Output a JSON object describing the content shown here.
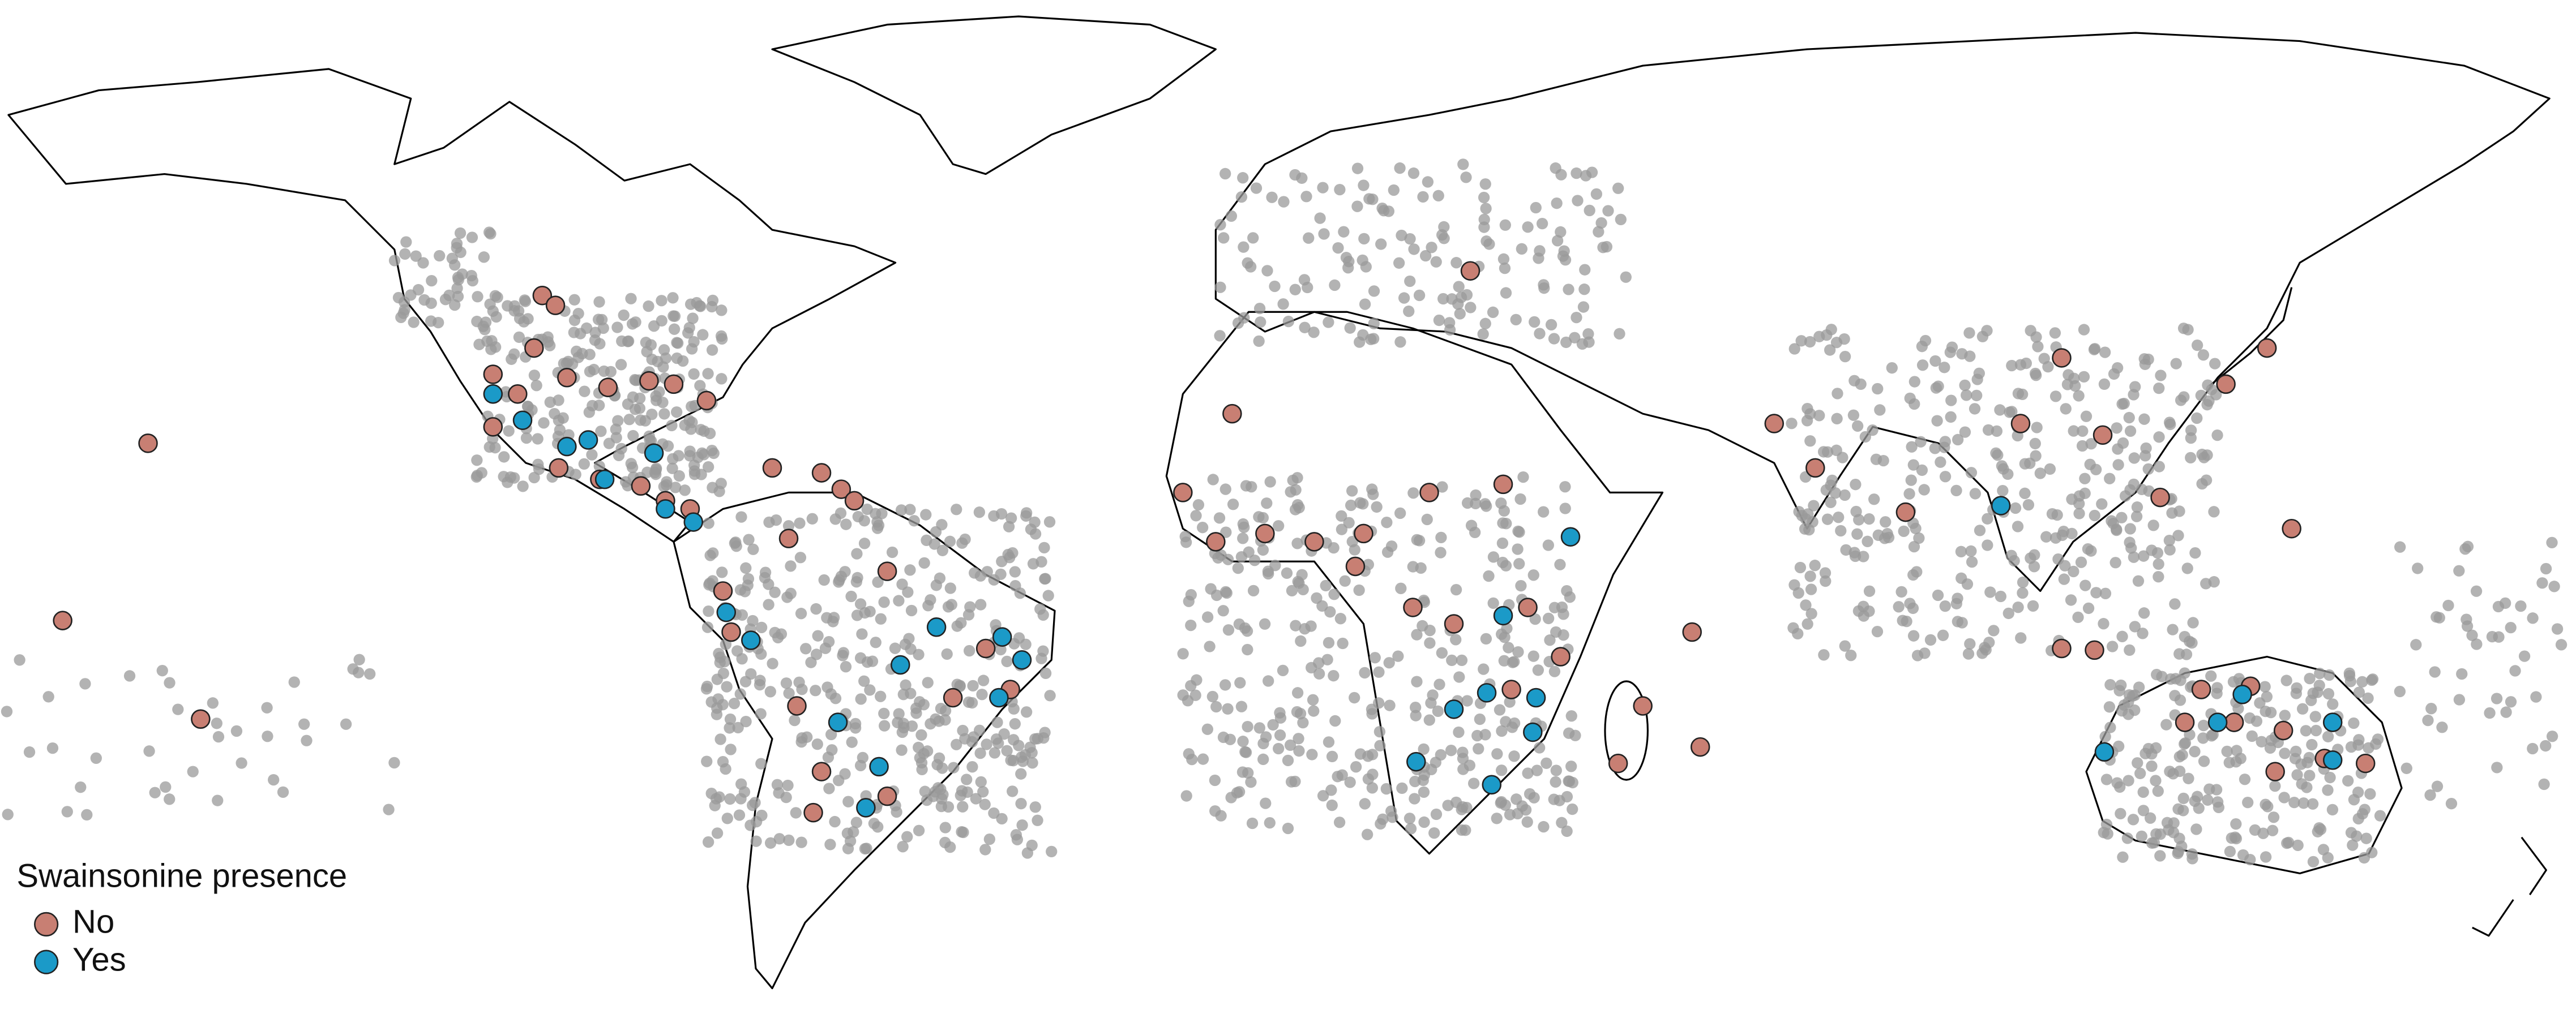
{
  "legend": {
    "title": "Swainsonine presence",
    "items": [
      {
        "label": "No",
        "color": "#c87f73"
      },
      {
        "label": "Yes",
        "color": "#1b9ac8"
      }
    ]
  }
}
